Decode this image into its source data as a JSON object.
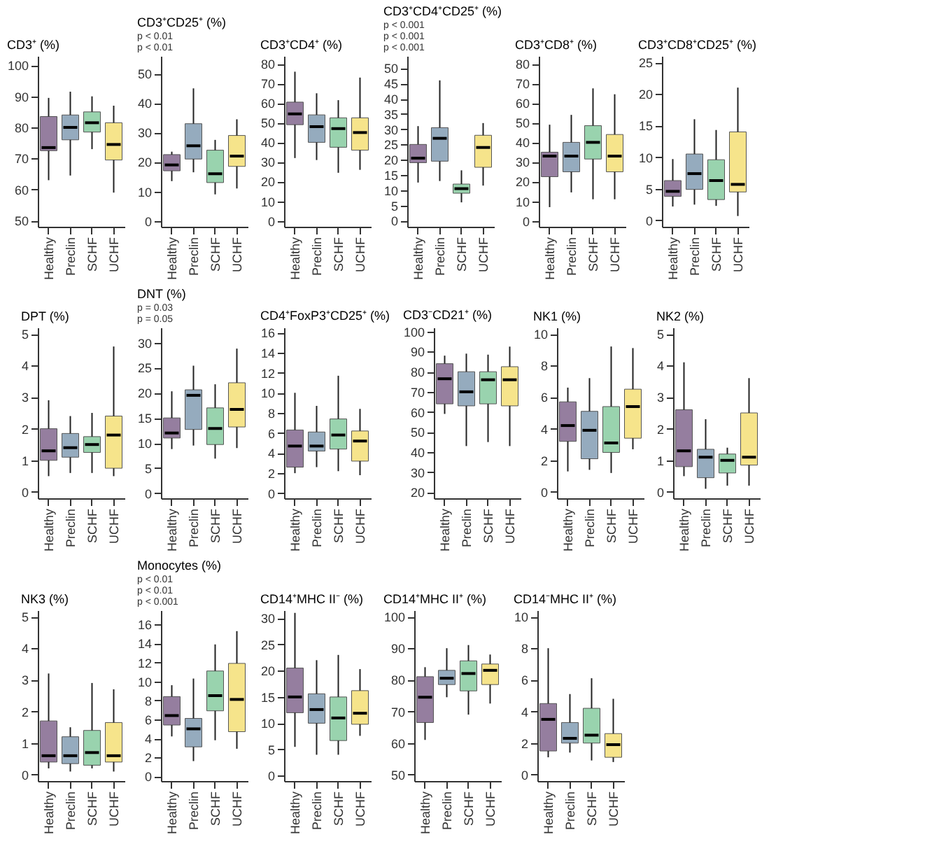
{
  "chart_data": [
    {
      "type": "box",
      "title": "CD3⁺ (%)",
      "categories": [
        "Healthy",
        "Preclin",
        "SCHF",
        "UCHF"
      ],
      "colors": [
        "#8a7195",
        "#8aa2b8",
        "#8ecfa6",
        "#f6e27f"
      ],
      "ylim": [
        48,
        103
      ],
      "yticks": [
        50,
        60,
        70,
        80,
        90,
        100
      ],
      "boxes": [
        {
          "low": 63,
          "q1": 72.5,
          "median": 73.5,
          "q3": 83.5,
          "high": 89.5
        },
        {
          "low": 64.5,
          "q1": 76,
          "median": 80,
          "q3": 84,
          "high": 91.5
        },
        {
          "low": 73,
          "q1": 78.5,
          "median": 81.5,
          "q3": 85,
          "high": 90
        },
        {
          "low": 59,
          "q1": 69.5,
          "median": 74.5,
          "q3": 81.5,
          "high": 87
        }
      ]
    },
    {
      "type": "box",
      "title": "CD3⁺CD25⁺ (%)",
      "categories": [
        "Healthy",
        "Preclin",
        "SCHF",
        "UCHF"
      ],
      "colors": [
        "#8a7195",
        "#8aa2b8",
        "#8ecfa6",
        "#f6e27f"
      ],
      "ylim": [
        -2,
        56
      ],
      "yticks": [
        0,
        10,
        20,
        30,
        40,
        50
      ],
      "annotations": [
        "p < 0.01",
        "p < 0.01"
      ],
      "boxes": [
        {
          "low": 13.5,
          "q1": 17,
          "median": 19,
          "q3": 22.5,
          "high": 23.5
        },
        {
          "low": 16.5,
          "q1": 21,
          "median": 25.5,
          "q3": 33,
          "high": 45
        },
        {
          "low": 9,
          "q1": 13,
          "median": 16,
          "q3": 24,
          "high": 27.5
        },
        {
          "low": 11,
          "q1": 18.5,
          "median": 22,
          "q3": 29,
          "high": 34.5
        }
      ]
    },
    {
      "type": "box",
      "title": "CD3⁺CD4⁺ (%)",
      "categories": [
        "Healthy",
        "Preclin",
        "SCHF",
        "UCHF"
      ],
      "colors": [
        "#8a7195",
        "#8aa2b8",
        "#8ecfa6",
        "#f6e27f"
      ],
      "ylim": [
        -3,
        84
      ],
      "yticks": [
        0,
        10,
        20,
        30,
        40,
        50,
        60,
        70,
        80
      ],
      "boxes": [
        {
          "low": 32,
          "q1": 49,
          "median": 54.5,
          "q3": 60.5,
          "high": 76
        },
        {
          "low": 31,
          "q1": 40,
          "median": 48,
          "q3": 54,
          "high": 65
        },
        {
          "low": 24.5,
          "q1": 37.5,
          "median": 47,
          "q3": 52.5,
          "high": 61.5
        },
        {
          "low": 26,
          "q1": 36,
          "median": 45,
          "q3": 52.5,
          "high": 73
        }
      ]
    },
    {
      "type": "box",
      "title": "CD3⁺CD4⁺CD25⁺ (%)",
      "categories": [
        "Healthy",
        "Preclin",
        "SCHF",
        "UCHF"
      ],
      "colors": [
        "#8a7195",
        "#8aa2b8",
        "#8ecfa6",
        "#f6e27f"
      ],
      "ylim": [
        -2,
        54
      ],
      "yticks": [
        0,
        5,
        10,
        15,
        20,
        25,
        30,
        35,
        40,
        45,
        50
      ],
      "annotations": [
        "p < 0.001",
        "p < 0.001",
        "p < 0.001"
      ],
      "boxes": [
        {
          "low": 12.5,
          "q1": 19,
          "median": 20.5,
          "q3": 25,
          "high": 31
        },
        {
          "low": 13,
          "q1": 19.5,
          "median": 27,
          "q3": 30.5,
          "high": 46
        },
        {
          "low": 6,
          "q1": 9,
          "median": 10.5,
          "q3": 12,
          "high": 16.5
        },
        {
          "low": 11.5,
          "q1": 17.5,
          "median": 24,
          "q3": 28,
          "high": 32
        }
      ]
    },
    {
      "type": "box",
      "title": "CD3⁺CD8⁺ (%)",
      "categories": [
        "Healthy",
        "Preclin",
        "SCHF",
        "UCHF"
      ],
      "colors": [
        "#8a7195",
        "#8aa2b8",
        "#8ecfa6",
        "#f6e27f"
      ],
      "ylim": [
        -3,
        84
      ],
      "yticks": [
        0,
        10,
        20,
        30,
        40,
        50,
        60,
        70,
        80
      ],
      "boxes": [
        {
          "low": 7,
          "q1": 22.5,
          "median": 33,
          "q3": 35,
          "high": 49
        },
        {
          "low": 14.5,
          "q1": 25,
          "median": 33,
          "q3": 40,
          "high": 54
        },
        {
          "low": 11,
          "q1": 31.5,
          "median": 40,
          "q3": 48.5,
          "high": 67.5
        },
        {
          "low": 11,
          "q1": 25,
          "median": 33,
          "q3": 44,
          "high": 64.5
        }
      ]
    },
    {
      "type": "box",
      "title": "CD3⁺CD8⁺CD25⁺ (%)",
      "categories": [
        "Healthy",
        "Preclin",
        "SCHF",
        "UCHF"
      ],
      "colors": [
        "#8a7195",
        "#8aa2b8",
        "#8ecfa6",
        "#f6e27f"
      ],
      "ylim": [
        -1,
        26
      ],
      "yticks": [
        0,
        5,
        10,
        15,
        20,
        25
      ],
      "boxes": [
        {
          "low": 2.2,
          "q1": 3.8,
          "median": 4.6,
          "q3": 6.3,
          "high": 9.7
        },
        {
          "low": 2.5,
          "q1": 4.9,
          "median": 7.4,
          "q3": 10.5,
          "high": 16
        },
        {
          "low": 2.3,
          "q1": 3.3,
          "median": 6.3,
          "q3": 9.6,
          "high": 14.3
        },
        {
          "low": 0.7,
          "q1": 4.5,
          "median": 5.7,
          "q3": 14,
          "high": 21
        }
      ]
    },
    {
      "type": "box",
      "title": "DPT (%)",
      "categories": [
        "Healthy",
        "Preclin",
        "SCHF",
        "UCHF"
      ],
      "colors": [
        "#8a7195",
        "#8aa2b8",
        "#8ecfa6",
        "#f6e27f"
      ],
      "ylim": [
        -0.2,
        5.2
      ],
      "yticks": [
        0,
        1,
        2,
        3,
        4,
        5
      ],
      "boxes": [
        {
          "low": 0.5,
          "q1": 1,
          "median": 1.3,
          "q3": 2,
          "high": 2.9
        },
        {
          "low": 0.6,
          "q1": 1.1,
          "median": 1.4,
          "q3": 1.85,
          "high": 2.4
        },
        {
          "low": 0.6,
          "q1": 1.25,
          "median": 1.5,
          "q3": 1.75,
          "high": 2.5
        },
        {
          "low": 0.5,
          "q1": 0.75,
          "median": 1.8,
          "q3": 2.4,
          "high": 4.6
        }
      ]
    },
    {
      "type": "box",
      "title": "DNT (%)",
      "categories": [
        "Healthy",
        "Preclin",
        "SCHF",
        "UCHF"
      ],
      "colors": [
        "#8a7195",
        "#8aa2b8",
        "#8ecfa6",
        "#f6e27f"
      ],
      "ylim": [
        -1,
        33
      ],
      "yticks": [
        0,
        5,
        10,
        15,
        20,
        25,
        30
      ],
      "annotations": [
        "p = 0.03",
        "p = 0.05"
      ],
      "boxes": [
        {
          "low": 8.8,
          "q1": 11,
          "median": 12,
          "q3": 15,
          "high": 20.3
        },
        {
          "low": 9.5,
          "q1": 12.7,
          "median": 19.5,
          "q3": 20.6,
          "high": 25.4
        },
        {
          "low": 6.9,
          "q1": 9.7,
          "median": 12.9,
          "q3": 17,
          "high": 21.7
        },
        {
          "low": 9,
          "q1": 13.2,
          "median": 16.7,
          "q3": 22,
          "high": 28.8
        }
      ]
    },
    {
      "type": "box",
      "title": "CD4⁺FoxP3⁺CD25⁺ (%)",
      "categories": [
        "Healthy",
        "Preclin",
        "SCHF",
        "UCHF"
      ],
      "colors": [
        "#8a7195",
        "#8aa2b8",
        "#8ecfa6",
        "#f6e27f"
      ],
      "ylim": [
        -0.5,
        16.5
      ],
      "yticks": [
        0,
        2,
        4,
        6,
        8,
        10,
        12,
        14,
        16
      ],
      "boxes": [
        {
          "low": 2,
          "q1": 2.6,
          "median": 4.7,
          "q3": 6.3,
          "high": 10
        },
        {
          "low": 2.6,
          "q1": 4.2,
          "median": 4.7,
          "q3": 6.1,
          "high": 8.7
        },
        {
          "low": 2.2,
          "q1": 4.4,
          "median": 5.8,
          "q3": 7.4,
          "high": 11.7
        },
        {
          "low": 1.8,
          "q1": 3.2,
          "median": 5.2,
          "q3": 6.2,
          "high": 8.4
        }
      ]
    },
    {
      "type": "box",
      "title": "CD3⁻CD21⁺ (%)",
      "categories": [
        "Healthy",
        "Preclin",
        "SCHF",
        "UCHF"
      ],
      "colors": [
        "#8a7195",
        "#8aa2b8",
        "#8ecfa6",
        "#f6e27f"
      ],
      "ylim": [
        17,
        102
      ],
      "yticks": [
        20,
        30,
        40,
        50,
        60,
        70,
        80,
        90,
        100
      ],
      "boxes": [
        {
          "low": 59,
          "q1": 64,
          "median": 76.5,
          "q3": 84,
          "high": 88
        },
        {
          "low": 43,
          "q1": 63,
          "median": 70,
          "q3": 80,
          "high": 89
        },
        {
          "low": 45,
          "q1": 64,
          "median": 76,
          "q3": 80,
          "high": 88.5
        },
        {
          "low": 43,
          "q1": 63,
          "median": 76,
          "q3": 82.5,
          "high": 92.5
        }
      ]
    },
    {
      "type": "box",
      "title": "NK1 (%)",
      "categories": [
        "Healthy",
        "Preclin",
        "SCHF",
        "UCHF"
      ],
      "colors": [
        "#8a7195",
        "#8aa2b8",
        "#8ecfa6",
        "#f6e27f"
      ],
      "ylim": [
        -0.4,
        10.4
      ],
      "yticks": [
        0,
        2,
        4,
        6,
        8,
        10
      ],
      "boxes": [
        {
          "low": 1.3,
          "q1": 3.2,
          "median": 4.2,
          "q3": 5.7,
          "high": 6.6
        },
        {
          "low": 1.4,
          "q1": 2.1,
          "median": 3.9,
          "q3": 5.1,
          "high": 7.2
        },
        {
          "low": 1.2,
          "q1": 2.5,
          "median": 3.1,
          "q3": 5.4,
          "high": 9.2
        },
        {
          "low": 2.7,
          "q1": 3.4,
          "median": 5.4,
          "q3": 6.5,
          "high": 9.1
        }
      ]
    },
    {
      "type": "box",
      "title": "NK2 (%)",
      "categories": [
        "Healthy",
        "Preclin",
        "SCHF",
        "UCHF"
      ],
      "colors": [
        "#8a7195",
        "#8aa2b8",
        "#8ecfa6",
        "#f6e27f"
      ],
      "ylim": [
        -0.2,
        5.2
      ],
      "yticks": [
        0,
        1,
        2,
        3,
        4,
        5
      ],
      "boxes": [
        {
          "low": 0.5,
          "q1": 0.8,
          "median": 1.3,
          "q3": 2.6,
          "high": 4.1
        },
        {
          "low": 0.1,
          "q1": 0.45,
          "median": 1.1,
          "q3": 1.35,
          "high": 2.3
        },
        {
          "low": 0.2,
          "q1": 0.6,
          "median": 1,
          "q3": 1.2,
          "high": 1.4
        },
        {
          "low": 0.2,
          "q1": 0.85,
          "median": 1.1,
          "q3": 2.5,
          "high": 3.6
        }
      ]
    },
    {
      "type": "box",
      "title": "NK3 (%)",
      "categories": [
        "Healthy",
        "Preclin",
        "SCHF",
        "UCHF"
      ],
      "colors": [
        "#8a7195",
        "#8aa2b8",
        "#8ecfa6",
        "#f6e27f"
      ],
      "ylim": [
        -0.2,
        5.2
      ],
      "yticks": [
        0,
        1,
        2,
        3,
        4,
        5
      ],
      "boxes": [
        {
          "low": 0.2,
          "q1": 0.4,
          "median": 0.6,
          "q3": 1.7,
          "high": 3.2
        },
        {
          "low": 0.1,
          "q1": 0.35,
          "median": 0.6,
          "q3": 1.2,
          "high": 1.5
        },
        {
          "low": 0.2,
          "q1": 0.3,
          "median": 0.7,
          "q3": 1.4,
          "high": 2.9
        },
        {
          "low": 0.1,
          "q1": 0.4,
          "median": 0.6,
          "q3": 1.65,
          "high": 2.7
        }
      ]
    },
    {
      "type": "box",
      "title": "Monocytes (%)",
      "categories": [
        "Healthy",
        "Preclin",
        "SCHF",
        "UCHF"
      ],
      "colors": [
        "#8a7195",
        "#8aa2b8",
        "#8ecfa6",
        "#f6e27f"
      ],
      "ylim": [
        -0.5,
        17.5
      ],
      "yticks": [
        0,
        2,
        4,
        6,
        8,
        10,
        12,
        14,
        16
      ],
      "annotations": [
        "p < 0.01",
        "p < 0.01",
        "p < 0.001"
      ],
      "boxes": [
        {
          "low": 4.2,
          "q1": 5.4,
          "median": 6.4,
          "q3": 8.4,
          "high": 9.6
        },
        {
          "low": 1.6,
          "q1": 3.1,
          "median": 5,
          "q3": 6.1,
          "high": 10.3
        },
        {
          "low": 3.8,
          "q1": 6.9,
          "median": 8.5,
          "q3": 11.1,
          "high": 13.9
        },
        {
          "low": 2.9,
          "q1": 4.7,
          "median": 8.1,
          "q3": 11.9,
          "high": 15.3
        }
      ]
    },
    {
      "type": "box",
      "title": "CD14⁺MHC II⁻ (%)",
      "categories": [
        "Healthy",
        "Preclin",
        "SCHF",
        "UCHF"
      ],
      "colors": [
        "#8a7195",
        "#8aa2b8",
        "#8ecfa6",
        "#f6e27f"
      ],
      "ylim": [
        -1,
        31.5
      ],
      "yticks": [
        0,
        5,
        10,
        15,
        20,
        25,
        30
      ],
      "boxes": [
        {
          "low": 5.5,
          "q1": 12,
          "median": 15,
          "q3": 20.5,
          "high": 31
        },
        {
          "low": 4,
          "q1": 10,
          "median": 12.6,
          "q3": 15.6,
          "high": 22
        },
        {
          "low": 4,
          "q1": 6.7,
          "median": 11,
          "q3": 15,
          "high": 23
        },
        {
          "low": 7.6,
          "q1": 9.8,
          "median": 11.9,
          "q3": 16.2,
          "high": 20.3
        }
      ]
    },
    {
      "type": "box",
      "title": "CD14⁺MHC II⁺ (%)",
      "categories": [
        "Healthy",
        "Preclin",
        "SCHF",
        "UCHF"
      ],
      "colors": [
        "#8a7195",
        "#8aa2b8",
        "#8ecfa6",
        "#f6e27f"
      ],
      "ylim": [
        48,
        102
      ],
      "yticks": [
        50,
        60,
        70,
        80,
        90,
        100
      ],
      "boxes": [
        {
          "low": 61,
          "q1": 66.5,
          "median": 74.5,
          "q3": 81,
          "high": 84
        },
        {
          "low": 74.5,
          "q1": 78.5,
          "median": 80.5,
          "q3": 83,
          "high": 90
        },
        {
          "low": 69,
          "q1": 76.5,
          "median": 82,
          "q3": 86,
          "high": 91
        },
        {
          "low": 72.5,
          "q1": 78.5,
          "median": 83,
          "q3": 85,
          "high": 88
        }
      ]
    },
    {
      "type": "box",
      "title": "CD14⁻MHC II⁺ (%)",
      "categories": [
        "Healthy",
        "Preclin",
        "SCHF",
        "UCHF"
      ],
      "colors": [
        "#8a7195",
        "#8aa2b8",
        "#8ecfa6",
        "#f6e27f"
      ],
      "ylim": [
        -0.4,
        10.4
      ],
      "yticks": [
        0,
        2,
        4,
        6,
        8,
        10
      ],
      "boxes": [
        {
          "low": 1.1,
          "q1": 1.5,
          "median": 3.5,
          "q3": 4.5,
          "high": 8
        },
        {
          "low": 1.4,
          "q1": 2,
          "median": 2.3,
          "q3": 3.3,
          "high": 5.1
        },
        {
          "low": 0.9,
          "q1": 2,
          "median": 2.5,
          "q3": 4.2,
          "high": 6.1
        },
        {
          "low": 0.8,
          "q1": 1.1,
          "median": 1.9,
          "q3": 2.6,
          "high": 4.8
        }
      ]
    }
  ]
}
